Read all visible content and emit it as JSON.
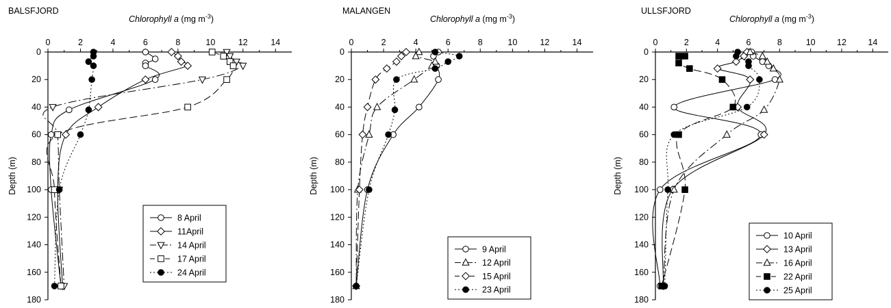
{
  "chart_data": [
    {
      "type": "line",
      "title": "BALSFJORD",
      "xlabel": {
        "italic": "Chlorophyll a",
        "unit": " (mg m",
        "sup": "-3",
        "close": ")"
      },
      "ylabel": "Depth (m)",
      "xlim": [
        0,
        15
      ],
      "ylim": [
        0,
        180
      ],
      "y_inverted": true,
      "xticks": [
        "0",
        "2",
        "4",
        "6",
        "8",
        "10",
        "12",
        "14"
      ],
      "yticks": [
        "0",
        "20",
        "40",
        "60",
        "80",
        "100",
        "120",
        "140",
        "160",
        "180"
      ],
      "legend_position": "bottom-right",
      "series": [
        {
          "name": "8 April",
          "marker": "circle",
          "line": "solid",
          "depths": [
            0,
            5,
            8,
            10,
            20,
            42,
            60,
            100,
            170
          ],
          "values": [
            6.0,
            6.6,
            6.0,
            6.0,
            6.6,
            1.3,
            0.2,
            0.2,
            0.8
          ]
        },
        {
          "name": "11April",
          "marker": "diamond",
          "line": "solid",
          "depths": [
            0,
            3,
            7,
            10,
            20,
            40,
            60,
            100,
            170
          ],
          "values": [
            7.6,
            8.0,
            8.2,
            8.6,
            6.0,
            3.1,
            1.1,
            0.6,
            0.9
          ]
        },
        {
          "name": "14 April",
          "marker": "triangle-down",
          "line": "dashdot",
          "depths": [
            0,
            3,
            7,
            10,
            20,
            40,
            60,
            100,
            170
          ],
          "values": [
            11.0,
            11.2,
            11.6,
            12.0,
            9.5,
            0.3,
            0.6,
            0.7,
            1.0
          ]
        },
        {
          "name": "17 April",
          "marker": "square",
          "line": "dashed",
          "depths": [
            0,
            3,
            7,
            10,
            20,
            40,
            60,
            100,
            170
          ],
          "values": [
            10.1,
            10.8,
            11.2,
            11.4,
            11.0,
            8.6,
            0.6,
            0.4,
            0.8
          ]
        },
        {
          "name": "24 April",
          "marker": "filled-circle",
          "line": "dotted",
          "depths": [
            0,
            3,
            7,
            10,
            20,
            42,
            60,
            100,
            170
          ],
          "values": [
            2.8,
            2.8,
            2.5,
            2.8,
            2.7,
            2.5,
            2.0,
            0.7,
            0.4
          ]
        }
      ]
    },
    {
      "type": "line",
      "title": "MALANGEN",
      "xlabel": {
        "italic": "Chlorophyll a",
        "unit": " (mg m",
        "sup": "-3",
        "close": ")"
      },
      "ylabel": "Depth (m)",
      "xlim": [
        0,
        15
      ],
      "ylim": [
        0,
        180
      ],
      "y_inverted": true,
      "xticks": [
        "0",
        "2",
        "4",
        "6",
        "8",
        "10",
        "12",
        "14"
      ],
      "yticks": [
        "0",
        "20",
        "40",
        "60",
        "80",
        "100",
        "120",
        "140",
        "160",
        "180"
      ],
      "legend_position": "bottom-right",
      "series": [
        {
          "name": "9 April",
          "marker": "circle",
          "line": "solid",
          "depths": [
            0,
            3,
            10,
            20,
            40,
            60,
            100,
            170
          ],
          "values": [
            5.4,
            5.1,
            5.3,
            5.4,
            4.2,
            2.6,
            1.0,
            0.3
          ]
        },
        {
          "name": "12 April",
          "marker": "triangle",
          "line": "dashdot",
          "depths": [
            0,
            3,
            7,
            10,
            20,
            40,
            60,
            100,
            170
          ],
          "values": [
            4.2,
            4.0,
            5.2,
            5.0,
            3.9,
            1.6,
            1.1,
            0.4,
            0.3
          ]
        },
        {
          "name": "15 April",
          "marker": "diamond",
          "line": "dashed",
          "depths": [
            0,
            3,
            7,
            12,
            20,
            40,
            60,
            100,
            170
          ],
          "values": [
            3.4,
            3.1,
            2.8,
            2.2,
            1.5,
            1.0,
            0.7,
            0.5,
            0.3
          ]
        },
        {
          "name": "23 April",
          "marker": "filled-circle",
          "line": "dotted",
          "depths": [
            0,
            3,
            7,
            12,
            20,
            42,
            60,
            100,
            170
          ],
          "values": [
            5.2,
            6.7,
            6.0,
            5.2,
            2.8,
            2.7,
            2.3,
            1.1,
            0.3
          ]
        }
      ]
    },
    {
      "type": "line",
      "title": "ULLSFJORD",
      "xlabel": {
        "italic": "Chlorophyll a",
        "unit": " (mg m",
        "sup": "-3",
        "close": ")"
      },
      "ylabel": "Depth (m)",
      "xlim": [
        0,
        15
      ],
      "ylim": [
        0,
        180
      ],
      "y_inverted": true,
      "xticks": [
        "0",
        "2",
        "4",
        "6",
        "8",
        "10",
        "12",
        "14"
      ],
      "yticks": [
        "0",
        "20",
        "40",
        "60",
        "80",
        "100",
        "120",
        "140",
        "160",
        "180"
      ],
      "legend_position": "bottom-right",
      "series": [
        {
          "name": "10 April",
          "marker": "circle",
          "line": "solid",
          "depths": [
            0,
            3,
            7,
            10,
            20,
            40,
            60,
            100,
            170
          ],
          "values": [
            6.2,
            6.3,
            6.9,
            7.3,
            7.7,
            1.2,
            6.8,
            0.3,
            0.3
          ]
        },
        {
          "name": "13 April",
          "marker": "diamond",
          "line": "solid",
          "depths": [
            0,
            3,
            7,
            12,
            20,
            40,
            60,
            100,
            170
          ],
          "values": [
            5.9,
            5.7,
            5.2,
            4.0,
            6.1,
            5.3,
            7.0,
            1.1,
            0.5
          ]
        },
        {
          "name": "16 April",
          "marker": "triangle",
          "line": "dashdot",
          "depths": [
            0,
            3,
            7,
            12,
            20,
            42,
            60,
            100,
            170
          ],
          "values": [
            6.1,
            6.9,
            7.2,
            7.6,
            8.0,
            7.0,
            4.6,
            1.2,
            0.5
          ]
        },
        {
          "name": "22 April",
          "marker": "filled-square",
          "line": "dashed",
          "depths": [
            3,
            3,
            8,
            12,
            20,
            40,
            60,
            100,
            170
          ],
          "values": [
            1.5,
            1.9,
            1.5,
            2.2,
            4.3,
            5.0,
            1.5,
            1.9,
            0.4
          ]
        },
        {
          "name": "25 April",
          "marker": "filled-circle",
          "line": "dotted",
          "depths": [
            0,
            3,
            7,
            10,
            20,
            40,
            60,
            100,
            170
          ],
          "values": [
            5.3,
            5.2,
            6.0,
            6.0,
            6.7,
            5.9,
            1.2,
            0.8,
            0.6
          ]
        }
      ]
    }
  ]
}
